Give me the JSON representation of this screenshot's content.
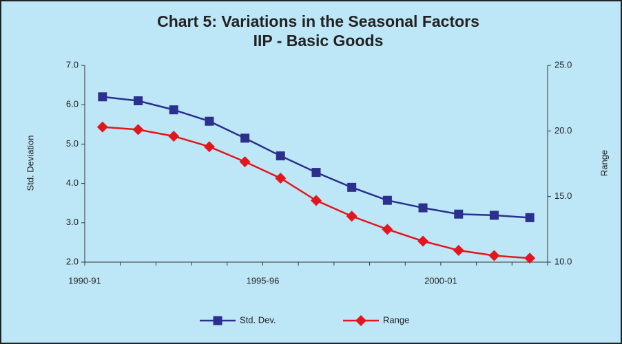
{
  "chart_data": {
    "type": "line",
    "title": "Chart 5: Variations in the Seasonal  Factors",
    "subtitle": "IIP - Basic Goods",
    "y_label": "Std. Deviation",
    "y2_label": "Range",
    "categories": [
      "1990-91",
      null,
      null,
      null,
      null,
      "1995-96",
      null,
      null,
      null,
      null,
      "2000-01",
      null,
      null
    ],
    "series": [
      {
        "name": "Std. Dev.",
        "color": "#2b2f8e",
        "marker": "square",
        "values": [
          6.2,
          6.1,
          5.87,
          5.58,
          5.15,
          4.7,
          4.28,
          3.9,
          3.57,
          3.38,
          3.22,
          3.19,
          3.13
        ]
      },
      {
        "name": "Range",
        "color": "#e3161d",
        "marker": "diamond",
        "axis": "y2",
        "values": [
          20.3,
          20.1,
          19.6,
          18.8,
          17.65,
          16.4,
          14.7,
          13.5,
          12.5,
          11.6,
          10.9,
          10.5,
          10.3
        ]
      }
    ],
    "ylim": [
      2,
      7
    ],
    "yticks": [
      {
        "value": 2,
        "label": "2.0"
      },
      {
        "value": 3,
        "label": "3.0"
      },
      {
        "value": 4,
        "label": "4.0"
      },
      {
        "value": 5,
        "label": "5.0"
      },
      {
        "value": 6,
        "label": "6.0"
      },
      {
        "value": 7,
        "label": "7.0"
      }
    ],
    "y2lim": [
      10,
      25
    ],
    "y2ticks": [
      {
        "value": 10,
        "label": "10.0"
      },
      {
        "value": 15,
        "label": "15.0"
      },
      {
        "value": 20,
        "label": "20.0"
      },
      {
        "value": 25,
        "label": "25.0"
      }
    ],
    "grid": false,
    "legend": "bottom"
  }
}
